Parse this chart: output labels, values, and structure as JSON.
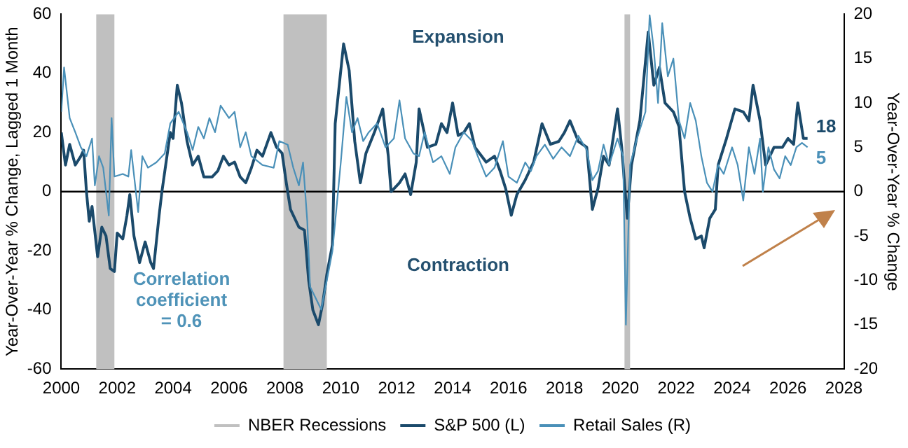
{
  "chart_data": {
    "type": "line",
    "ylabel": "Year-Over-Year % Change, Lagged 1 Month",
    "y2label": "Year-Over-Year % Change",
    "xlim": [
      2000,
      2028
    ],
    "xticks": [
      2000,
      2002,
      2004,
      2006,
      2008,
      2010,
      2012,
      2014,
      2016,
      2018,
      2020,
      2022,
      2024,
      2026,
      2028
    ],
    "ylim": [
      -60,
      60
    ],
    "yticks": [
      -60,
      -40,
      -20,
      0,
      20,
      40,
      60
    ],
    "y2lim": [
      -20,
      20
    ],
    "y2ticks": [
      -20,
      -15,
      -10,
      -5,
      0,
      5,
      10,
      15,
      20
    ],
    "grid": false,
    "legend": "bottom",
    "marker": "none",
    "line_style": "solid",
    "annotations": [
      "Expansion",
      "Contraction",
      "Correlation coefficient = 0.6"
    ],
    "ref_lines": [
      {
        "axis": "y",
        "value": 0,
        "color": "#000000"
      }
    ],
    "bands": [
      {
        "axis": "x",
        "from": 2001.25,
        "to": 2001.9,
        "label": "NBER Recessions",
        "color": "#c0c0c0"
      },
      {
        "axis": "x",
        "from": 2007.95,
        "to": 2009.5,
        "color": "#c0c0c0"
      },
      {
        "axis": "x",
        "from": 2020.15,
        "to": 2020.35,
        "color": "#c0c0c0"
      }
    ],
    "series": [
      {
        "name": "Retail Sales (R)",
        "color": "#4a90b8",
        "axis": "y2",
        "x": [
          2000.0,
          2000.1,
          2000.3,
          2000.5,
          2000.7,
          2000.9,
          2001.1,
          2001.2,
          2001.35,
          2001.5,
          2001.7,
          2001.8,
          2001.9,
          2002.2,
          2002.4,
          2002.5,
          2002.75,
          2002.9,
          2003.1,
          2003.4,
          2003.7,
          2003.9,
          2004.2,
          2004.5,
          2004.7,
          2004.9,
          2005.1,
          2005.3,
          2005.5,
          2005.7,
          2006.0,
          2006.2,
          2006.4,
          2006.6,
          2006.8,
          2007.2,
          2007.6,
          2007.8,
          2008.1,
          2008.3,
          2008.5,
          2008.65,
          2008.8,
          2008.9,
          2009.1,
          2009.3,
          2009.5,
          2009.7,
          2009.85,
          2010.0,
          2010.2,
          2010.4,
          2010.6,
          2010.8,
          2011.0,
          2011.3,
          2011.6,
          2011.9,
          2012.1,
          2012.3,
          2012.6,
          2012.8,
          2013.0,
          2013.3,
          2013.6,
          2013.9,
          2014.1,
          2014.4,
          2014.7,
          2014.9,
          2015.2,
          2015.5,
          2015.8,
          2016.0,
          2016.3,
          2016.6,
          2016.8,
          2017.0,
          2017.3,
          2017.6,
          2017.9,
          2018.2,
          2018.5,
          2018.8,
          2019.0,
          2019.2,
          2019.4,
          2019.6,
          2019.9,
          2020.1,
          2020.2,
          2020.35,
          2020.6,
          2020.9,
          2021.05,
          2021.2,
          2021.35,
          2021.5,
          2021.7,
          2021.9,
          2022.1,
          2022.3,
          2022.5,
          2022.7,
          2022.9,
          2023.1,
          2023.3,
          2023.5,
          2023.7,
          2024.0,
          2024.2,
          2024.4,
          2024.6,
          2024.8,
          2025.0,
          2025.1,
          2025.3,
          2025.5,
          2025.7,
          2025.9,
          2026.1,
          2026.3,
          2026.5,
          2026.7
        ],
        "values": [
          9,
          14,
          8.3,
          6.7,
          5,
          4,
          6,
          0.7,
          4,
          2.7,
          -2.7,
          8.3,
          1.7,
          2,
          1.7,
          4.7,
          -2.3,
          4,
          2.7,
          3.3,
          4.3,
          7.7,
          9,
          6.7,
          4.7,
          7.3,
          6,
          8.3,
          6.7,
          9.7,
          8.3,
          9,
          5,
          6.7,
          4,
          3,
          2.7,
          5.7,
          5.3,
          2.7,
          0.7,
          3.3,
          -3.3,
          -10.7,
          -12,
          -13.3,
          -10,
          -6.7,
          -1.7,
          3.3,
          10.7,
          6.7,
          8.3,
          5.7,
          6.7,
          7.7,
          5,
          6,
          10.3,
          6,
          4.3,
          4,
          6.7,
          3.3,
          4,
          2,
          5,
          6.7,
          5.7,
          4,
          1.7,
          2.7,
          5.7,
          1.7,
          1,
          3.3,
          2.3,
          4,
          5.3,
          3.7,
          5,
          4,
          6.3,
          4.7,
          1.3,
          2.3,
          5.3,
          3,
          6,
          4,
          -15,
          3,
          6,
          9,
          19.9,
          16,
          10,
          19,
          13,
          15,
          8,
          6,
          10,
          8,
          4,
          1,
          0,
          3,
          2,
          5,
          3,
          -1,
          5,
          2,
          6,
          0,
          5,
          2.5,
          1.5,
          4,
          3,
          5,
          5.5,
          5
        ],
        "value_labels": [
          null,
          null,
          null,
          null,
          null,
          null,
          null,
          null,
          null,
          null,
          null,
          null,
          null,
          null,
          null,
          null,
          null,
          null,
          null,
          null,
          null,
          null,
          null,
          null,
          null,
          null,
          null,
          null,
          null,
          null,
          null,
          null,
          null,
          null,
          null,
          null,
          null,
          null,
          null,
          null,
          null,
          null,
          null,
          null,
          null,
          null,
          null,
          null,
          null,
          null,
          null,
          null,
          null,
          null,
          null,
          null,
          null,
          null,
          null,
          null,
          null,
          null,
          null,
          null,
          null,
          null,
          null,
          null,
          null,
          null,
          null,
          null,
          null,
          null,
          null,
          null,
          null,
          null,
          null,
          null,
          null,
          null,
          null,
          null,
          null,
          null,
          null,
          null,
          null,
          null,
          null,
          null,
          null,
          null,
          null,
          null,
          null,
          null,
          null,
          null,
          null,
          null,
          null,
          null,
          null,
          null,
          null,
          null,
          null,
          null,
          null,
          null,
          null,
          null,
          null,
          null,
          null,
          null,
          null,
          null,
          null,
          null,
          null,
          "5"
        ]
      },
      {
        "name": "S&P 500 (L)",
        "color": "#1b4a6b",
        "axis": "y",
        "x": [
          2000.0,
          2000.15,
          2000.3,
          2000.5,
          2000.7,
          2000.8,
          2000.9,
          2001.0,
          2001.1,
          2001.3,
          2001.45,
          2001.6,
          2001.75,
          2001.9,
          2002.0,
          2002.2,
          2002.35,
          2002.45,
          2002.6,
          2002.8,
          2003.0,
          2003.2,
          2003.3,
          2003.5,
          2003.6,
          2003.75,
          2003.9,
          2004.0,
          2004.15,
          2004.3,
          2004.5,
          2004.7,
          2004.9,
          2005.1,
          2005.4,
          2005.6,
          2005.8,
          2006.0,
          2006.2,
          2006.4,
          2006.6,
          2006.8,
          2007.0,
          2007.2,
          2007.5,
          2007.7,
          2007.9,
          2008.05,
          2008.2,
          2008.5,
          2008.7,
          2008.85,
          2009.0,
          2009.2,
          2009.35,
          2009.5,
          2009.7,
          2009.8,
          2010.1,
          2010.3,
          2010.5,
          2010.7,
          2010.9,
          2011.2,
          2011.5,
          2011.7,
          2011.8,
          2012.1,
          2012.3,
          2012.5,
          2012.7,
          2012.8,
          2013.1,
          2013.4,
          2013.6,
          2013.8,
          2014.0,
          2014.2,
          2014.4,
          2014.6,
          2014.8,
          2015.2,
          2015.5,
          2015.7,
          2015.9,
          2016.1,
          2016.3,
          2016.6,
          2016.9,
          2017.2,
          2017.5,
          2017.8,
          2018.0,
          2018.2,
          2018.5,
          2018.8,
          2019.0,
          2019.2,
          2019.4,
          2019.6,
          2019.9,
          2020.05,
          2020.25,
          2020.4,
          2020.7,
          2021.0,
          2021.2,
          2021.4,
          2021.6,
          2021.9,
          2022.1,
          2022.3,
          2022.5,
          2022.7,
          2022.9,
          2023.0,
          2023.2,
          2023.4,
          2023.5,
          2023.8,
          2024.1,
          2024.4,
          2024.6,
          2024.75,
          2025.0,
          2025.2,
          2025.5,
          2025.8,
          2026.0,
          2026.2,
          2026.35,
          2026.55,
          2026.7
        ],
        "values": [
          20,
          9,
          16,
          9,
          12,
          14,
          0,
          -10,
          -5,
          -22,
          -12,
          -15,
          -26,
          -27,
          -14,
          -16,
          -8,
          -1,
          -15,
          -24,
          -17,
          -24,
          -26,
          -8,
          0,
          10,
          20,
          18,
          36,
          30,
          17,
          9,
          12,
          5,
          5,
          7,
          12,
          9,
          10,
          5,
          3,
          8,
          14,
          12,
          20,
          15,
          13,
          3,
          -6,
          -12,
          -13,
          -30,
          -40,
          -45,
          -38,
          -28,
          -18,
          23,
          50,
          41,
          17,
          3,
          13,
          20,
          28,
          12,
          0,
          3,
          6,
          -1,
          10,
          28,
          15,
          16,
          23,
          20,
          30,
          19,
          20,
          23,
          15,
          10,
          12,
          7,
          1,
          -8,
          -1,
          4,
          10,
          23,
          16,
          17,
          20,
          24,
          17,
          15,
          -6,
          1,
          12,
          9,
          28,
          15,
          -9,
          9,
          24,
          54,
          36,
          42,
          30,
          27,
          22,
          0,
          -9,
          -16,
          -15,
          -19,
          -9,
          -6,
          9,
          18,
          28,
          27,
          24,
          36,
          24,
          9,
          15,
          15,
          18,
          16,
          30,
          18,
          18
        ],
        "value_labels": [
          null,
          null,
          null,
          null,
          null,
          null,
          null,
          null,
          null,
          null,
          null,
          null,
          null,
          null,
          null,
          null,
          null,
          null,
          null,
          null,
          null,
          null,
          null,
          null,
          null,
          null,
          null,
          null,
          null,
          null,
          null,
          null,
          null,
          null,
          null,
          null,
          null,
          null,
          null,
          null,
          null,
          null,
          null,
          null,
          null,
          null,
          null,
          null,
          null,
          null,
          null,
          null,
          null,
          null,
          null,
          null,
          null,
          null,
          null,
          null,
          null,
          null,
          null,
          null,
          null,
          null,
          null,
          null,
          null,
          null,
          null,
          null,
          null,
          null,
          null,
          null,
          null,
          null,
          null,
          null,
          null,
          null,
          null,
          null,
          null,
          null,
          null,
          null,
          null,
          null,
          null,
          null,
          null,
          null,
          null,
          null,
          null,
          null,
          null,
          null,
          null,
          null,
          null,
          null,
          null,
          null,
          null,
          null,
          null,
          null,
          null,
          null,
          null,
          null,
          null,
          null,
          null,
          null,
          null,
          null,
          null,
          null,
          null,
          null,
          null,
          null,
          null,
          null,
          null,
          null,
          null,
          null,
          "18"
        ]
      }
    ]
  }
}
